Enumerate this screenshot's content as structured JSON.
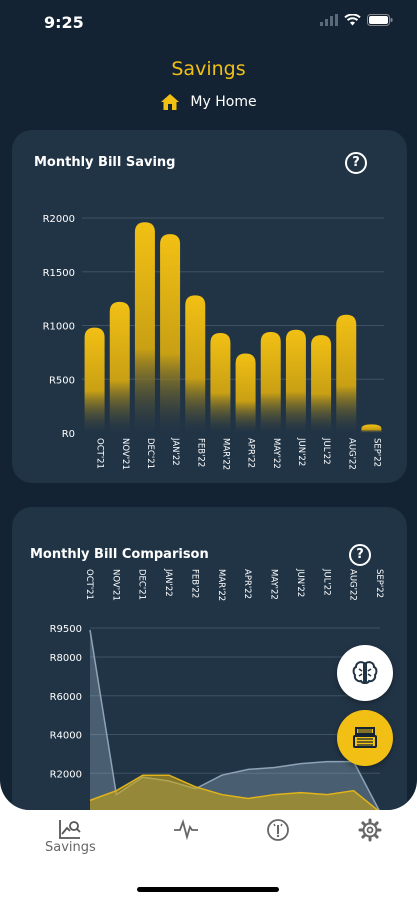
{
  "status": {
    "time": "9:25"
  },
  "header": {
    "title": "Savings",
    "home_label": "My Home"
  },
  "colors": {
    "accent": "#f2c014",
    "background": "#132334",
    "card": "#213446"
  },
  "saving_card": {
    "title": "Monthly Bill Saving",
    "help_symbol": "?"
  },
  "comparison_card": {
    "title": "Monthly Bill Comparison",
    "help_symbol": "?"
  },
  "tabs": [
    {
      "label": "Savings",
      "icon": "savings-chart-icon",
      "active": true
    },
    {
      "label": "",
      "icon": "activity-pulse-icon"
    },
    {
      "label": "",
      "icon": "info-gauge-icon"
    },
    {
      "label": "",
      "icon": "gear-icon"
    }
  ],
  "fabs": [
    {
      "icon": "brain-icon"
    },
    {
      "icon": "meter-box-icon"
    }
  ],
  "chart_data": [
    {
      "type": "bar",
      "title": "Monthly Bill Saving",
      "categories": [
        "OCT'21",
        "NOV'21",
        "DEC'21",
        "JAN'22",
        "FEB'22",
        "MAR'22",
        "APR'22",
        "MAY'22",
        "JUN'22",
        "JUL'22",
        "AUG'22",
        "SEP'22"
      ],
      "values": [
        980,
        1220,
        1960,
        1850,
        1280,
        930,
        740,
        940,
        960,
        910,
        1100,
        80
      ],
      "y_ticks": [
        "R0",
        "R500",
        "R1000",
        "R1500",
        "R2000"
      ],
      "ylim": [
        0,
        2000
      ],
      "grid": true
    },
    {
      "type": "area",
      "title": "Monthly Bill Comparison",
      "categories": [
        "OCT'21",
        "NOV'21",
        "DEC'21",
        "JAN'22",
        "FEB'22",
        "MAR'22",
        "APR'22",
        "MAY'22",
        "JUN'22",
        "JUL'22",
        "AUG'22",
        "SEP'22"
      ],
      "series": [
        {
          "values": [
            9400,
            900,
            1800,
            1600,
            1200,
            1900,
            2200,
            2300,
            2500,
            2600,
            2600,
            0
          ]
        },
        {
          "values": [
            600,
            1100,
            1900,
            1900,
            1300,
            900,
            700,
            900,
            1000,
            900,
            1100,
            0
          ]
        }
      ],
      "y_ticks": [
        "R2000",
        "R4000",
        "R6000",
        "R8000",
        "R9500"
      ],
      "ylim": [
        0,
        9500
      ],
      "grid": true
    }
  ]
}
